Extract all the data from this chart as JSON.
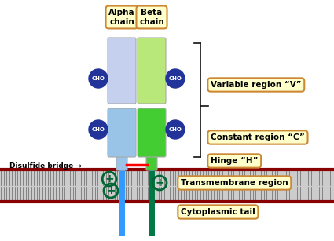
{
  "bg_color": "#ffffff",
  "alpha_chain_label": "Alpha\nchain",
  "beta_chain_label": "Beta\nchain",
  "variable_region_label": "Variable region “V”",
  "constant_region_label": "Constant region “C”",
  "hinge_label": "Hinge “H”",
  "transmembrane_label": "Transmembrane region",
  "cytoplasmic_label": "Cytoplasmic tail",
  "disulfide_label": "Disulfide bridge →",
  "cho_label": "CHO",
  "alpha_var_color": "#c5d0ee",
  "alpha_const_color": "#99c4e8",
  "beta_var_color": "#b8e87a",
  "beta_const_color": "#44cc33",
  "alpha_tm_color": "#3399ff",
  "beta_tm_color": "#007744",
  "membrane_dark": "#880000",
  "membrane_light": "#cccccc",
  "cho_circle_color": "#223399",
  "cho_text_color": "#ffffff",
  "disulfide_color": "#ff0000",
  "label_box_edge": "#cc8833",
  "label_box_face": "#ffffcc",
  "plus_color": "#006633",
  "bracket_color": "#111111",
  "figsize": [
    4.25,
    3.07
  ],
  "dpi": 100,
  "xlim": [
    0,
    425
  ],
  "ylim": [
    0,
    307
  ]
}
